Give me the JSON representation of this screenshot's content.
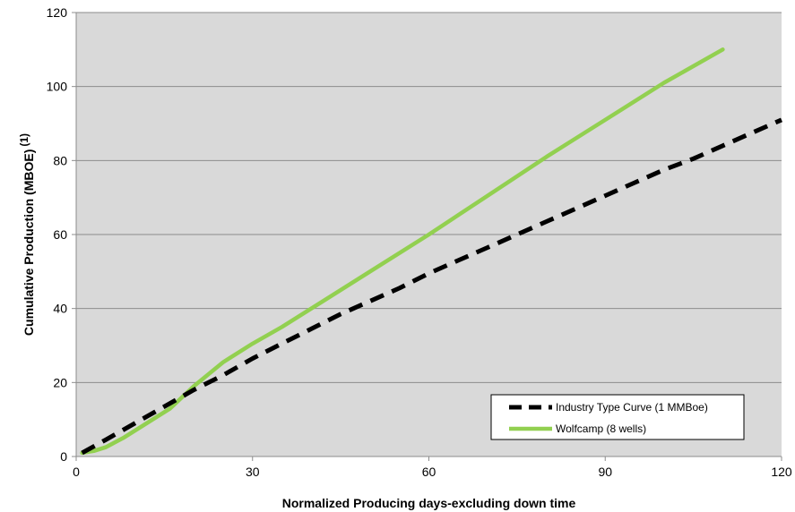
{
  "chart_data": {
    "type": "line",
    "title": "",
    "xlabel": "Normalized Producing days-excluding down time",
    "ylabel": "Cumulative Production (MBOE)",
    "ylabel_superscript": "(1)",
    "xlim": [
      0,
      120
    ],
    "ylim": [
      0,
      120
    ],
    "x_ticks": [
      0,
      30,
      60,
      90,
      120
    ],
    "y_ticks": [
      0,
      20,
      40,
      60,
      80,
      100,
      120
    ],
    "x_tick_labels": [
      "0",
      "30",
      "60",
      "90",
      "120"
    ],
    "y_tick_labels": [
      "0",
      "20",
      "40",
      "60",
      "80",
      "100",
      "120"
    ],
    "grid": "horizontal",
    "plot_background": "#d9d9d9",
    "legend_position": "bottom-right",
    "series": [
      {
        "name": "Industry Type Curve (1 MMBoe)",
        "color": "#000000",
        "style": "dashed",
        "x": [
          1,
          5,
          10,
          15,
          20,
          25,
          30,
          35,
          40,
          45,
          50,
          55,
          60,
          65,
          70,
          75,
          80,
          85,
          90,
          95,
          100,
          105,
          110,
          115,
          120
        ],
        "y": [
          1,
          4.5,
          9,
          13.5,
          18,
          22,
          26.5,
          30.5,
          34.5,
          38.5,
          42,
          45.5,
          49.5,
          53,
          56.5,
          60,
          63.5,
          67,
          70.5,
          74,
          77.5,
          80.5,
          84,
          87.5,
          91
        ]
      },
      {
        "name": "Wolfcamp (8 wells)",
        "color": "#92d050",
        "style": "solid",
        "x": [
          1,
          3,
          5,
          8,
          12,
          16,
          20,
          25,
          30,
          35,
          40,
          50,
          60,
          70,
          80,
          90,
          100,
          110
        ],
        "y": [
          1,
          1.5,
          2.5,
          5,
          9,
          13,
          19,
          25.5,
          30.5,
          35,
          40,
          50,
          60,
          70.5,
          81,
          91,
          101,
          110
        ]
      }
    ]
  }
}
